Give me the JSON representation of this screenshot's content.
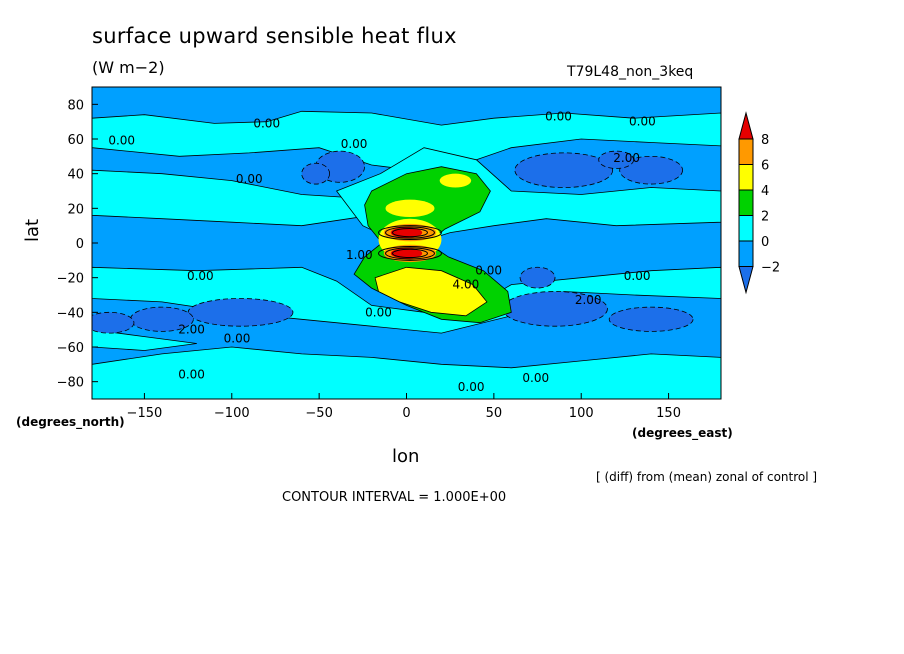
{
  "header": {
    "title": "surface upward sensible heat flux",
    "units": "(W m−2)",
    "run_name": "T79L48_non_3keq"
  },
  "footer": {
    "degrees_north": "(degrees_north)",
    "degrees_east": "(degrees_east)",
    "diff_note": "[ (diff) from (mean) zonal of control ]",
    "contour_interval": "CONTOUR INTERVAL = 1.000E+00"
  },
  "colors": {
    "lt_m2": "#1c6fea",
    "m2_0": "#00a0ff",
    "0_2": "#00ffff",
    "2_4": "#00d200",
    "4_6": "#ffff00",
    "6_8": "#ff9900",
    "gt_8": "#e60000",
    "background": "#ffffff"
  },
  "chart_data": {
    "type": "heatmap",
    "title": "surface upward sensible heat flux",
    "units": "(W m−2)",
    "xlabel": "lon",
    "ylabel": "lat",
    "xlim": [
      -180,
      180
    ],
    "ylim": [
      -90,
      90
    ],
    "xticks": [
      -150,
      -100,
      -50,
      0,
      50,
      100,
      150
    ],
    "xtick_labels": [
      "−150",
      "−100",
      "−50",
      "0",
      "50",
      "100",
      "150"
    ],
    "yticks": [
      80,
      60,
      40,
      20,
      0,
      -20,
      -40,
      -60,
      -80
    ],
    "ytick_labels": [
      "80",
      "60",
      "40",
      "20",
      "0",
      "−20",
      "−40",
      "−60",
      "−80"
    ],
    "colorbar": {
      "levels": [
        -2,
        0,
        2,
        4,
        6,
        8
      ],
      "labels": [
        "−2",
        "0",
        "2",
        "4",
        "6",
        "8"
      ]
    },
    "contour_interval": 1.0,
    "contour_labels": [
      {
        "text": "0.00",
        "lon": -80,
        "lat": 69
      },
      {
        "text": "0.00",
        "lon": -163,
        "lat": 59
      },
      {
        "text": "0.00",
        "lon": -30,
        "lat": 57
      },
      {
        "text": "0.00",
        "lon": -90,
        "lat": 37
      },
      {
        "text": "0.00",
        "lon": 87,
        "lat": 73
      },
      {
        "text": "0.00",
        "lon": 135,
        "lat": 70
      },
      {
        "text": "2.00",
        "lon": 126,
        "lat": 49
      },
      {
        "text": "0.00",
        "lon": -118,
        "lat": -19
      },
      {
        "text": "1.00",
        "lon": -27,
        "lat": -7
      },
      {
        "text": "4.00",
        "lon": 34,
        "lat": -24
      },
      {
        "text": "0.00",
        "lon": 47,
        "lat": -16
      },
      {
        "text": "0.00",
        "lon": 132,
        "lat": -19
      },
      {
        "text": "2.00",
        "lon": 104,
        "lat": -33
      },
      {
        "text": "0.00",
        "lon": -16,
        "lat": -40
      },
      {
        "text": "2.00",
        "lon": -123,
        "lat": -50
      },
      {
        "text": "0.00",
        "lon": -97,
        "lat": -55
      },
      {
        "text": "0.00",
        "lon": -123,
        "lat": -76
      },
      {
        "text": "0.00",
        "lon": 37,
        "lat": -83
      },
      {
        "text": "0.00",
        "lon": 74,
        "lat": -78
      }
    ]
  }
}
